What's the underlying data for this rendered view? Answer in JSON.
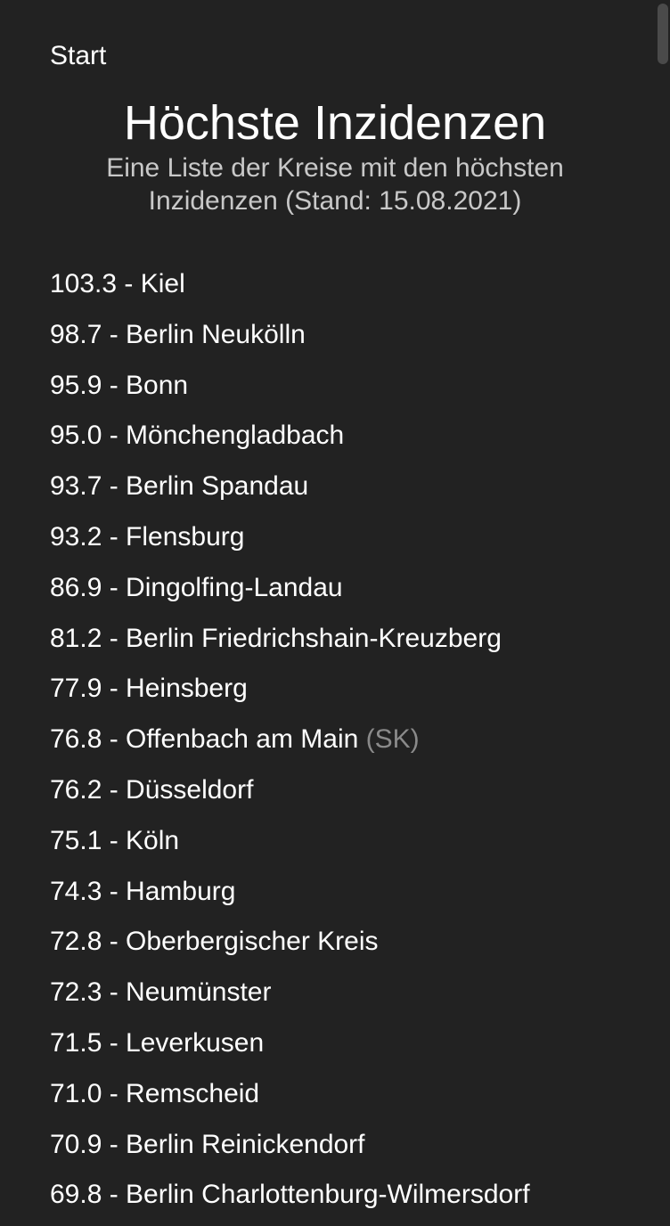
{
  "nav": {
    "back_label": "Start"
  },
  "header": {
    "title": "Höchste Inzidenzen",
    "subtitle": "Eine Liste der Kreise mit den höchsten Inzidenzen (Stand: 15.08.2021)"
  },
  "entries": [
    {
      "text": "103.3 - Kiel",
      "suffix": ""
    },
    {
      "text": "98.7 - Berlin Neukölln",
      "suffix": ""
    },
    {
      "text": "95.9 - Bonn",
      "suffix": ""
    },
    {
      "text": "95.0 - Mönchengladbach",
      "suffix": ""
    },
    {
      "text": "93.7 - Berlin Spandau",
      "suffix": ""
    },
    {
      "text": "93.2 - Flensburg",
      "suffix": ""
    },
    {
      "text": "86.9 - Dingolfing-Landau",
      "suffix": ""
    },
    {
      "text": "81.2 - Berlin Friedrichshain-Kreuzberg",
      "suffix": ""
    },
    {
      "text": "77.9 - Heinsberg",
      "suffix": ""
    },
    {
      "text": "76.8 - Offenbach am Main",
      "suffix": "(SK)"
    },
    {
      "text": "76.2 - Düsseldorf",
      "suffix": ""
    },
    {
      "text": "75.1 - Köln",
      "suffix": ""
    },
    {
      "text": "74.3 - Hamburg",
      "suffix": ""
    },
    {
      "text": "72.8 - Oberbergischer Kreis",
      "suffix": ""
    },
    {
      "text": "72.3 - Neumünster",
      "suffix": ""
    },
    {
      "text": "71.5 - Leverkusen",
      "suffix": ""
    },
    {
      "text": "71.0 - Remscheid",
      "suffix": ""
    },
    {
      "text": "70.9 - Berlin Reinickendorf",
      "suffix": ""
    },
    {
      "text": "69.8 - Berlin Charlottenburg-Wilmersdorf",
      "suffix": ""
    }
  ]
}
